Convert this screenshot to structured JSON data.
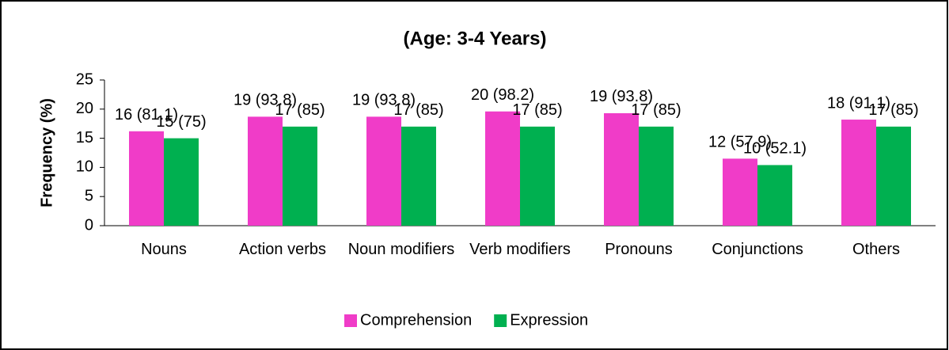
{
  "chart_data": {
    "type": "bar",
    "title": "(Age: 3-4 Years)",
    "y_label": "Frequency (%)",
    "categories": [
      "Nouns",
      "Action verbs",
      "Noun modifiers",
      "Verb modifiers",
      "Pronouns",
      "Conjunctions",
      "Others"
    ],
    "series": [
      {
        "name": "Comprehension",
        "color": "#f03cc8",
        "values": [
          16.2,
          18.7,
          18.7,
          19.6,
          19.3,
          11.5,
          18.2
        ],
        "value_labels": [
          "16 (81.1)",
          "19 (93.8)",
          "19 (93.8)",
          "20 (98.2)",
          "19 (93.8)",
          "12 (57.9)",
          "18 (91.1)"
        ]
      },
      {
        "name": "Expression",
        "color": "#00b050",
        "values": [
          15,
          17,
          17,
          17,
          17,
          10.4,
          17
        ],
        "value_labels": [
          "15 (75)",
          "17 (85)",
          "17 (85)",
          "17 (85)",
          "17 (85)",
          "10 (52.1)",
          "17 (85)"
        ]
      }
    ],
    "ylim": [
      0,
      25
    ],
    "yticks": [
      0,
      5,
      10,
      15,
      20,
      25
    ],
    "legend": "bottom"
  }
}
